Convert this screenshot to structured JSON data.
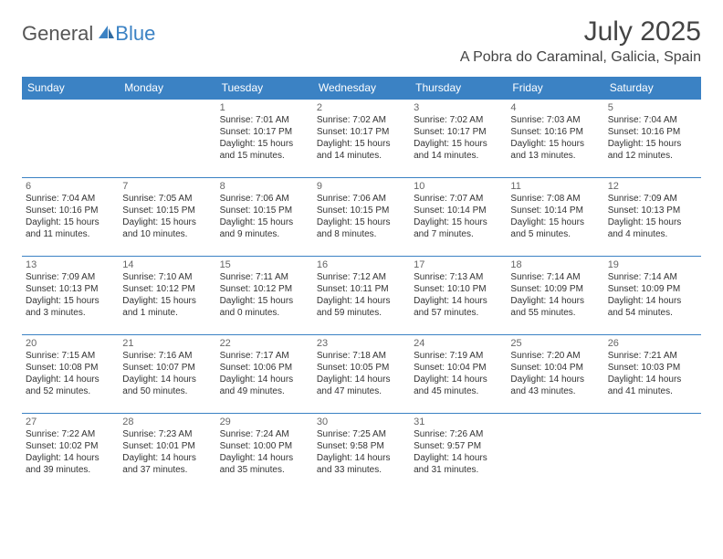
{
  "logo": {
    "text1": "General",
    "text2": "Blue"
  },
  "title": "July 2025",
  "location": "A Pobra do Caraminal, Galicia, Spain",
  "colors": {
    "brand_blue": "#3b82c4",
    "text_gray": "#555555",
    "white": "#ffffff"
  },
  "dayNames": [
    "Sunday",
    "Monday",
    "Tuesday",
    "Wednesday",
    "Thursday",
    "Friday",
    "Saturday"
  ],
  "weeks": [
    [
      null,
      null,
      {
        "n": "1",
        "sr": "7:01 AM",
        "ss": "10:17 PM",
        "dl": "15 hours and 15 minutes."
      },
      {
        "n": "2",
        "sr": "7:02 AM",
        "ss": "10:17 PM",
        "dl": "15 hours and 14 minutes."
      },
      {
        "n": "3",
        "sr": "7:02 AM",
        "ss": "10:17 PM",
        "dl": "15 hours and 14 minutes."
      },
      {
        "n": "4",
        "sr": "7:03 AM",
        "ss": "10:16 PM",
        "dl": "15 hours and 13 minutes."
      },
      {
        "n": "5",
        "sr": "7:04 AM",
        "ss": "10:16 PM",
        "dl": "15 hours and 12 minutes."
      }
    ],
    [
      {
        "n": "6",
        "sr": "7:04 AM",
        "ss": "10:16 PM",
        "dl": "15 hours and 11 minutes."
      },
      {
        "n": "7",
        "sr": "7:05 AM",
        "ss": "10:15 PM",
        "dl": "15 hours and 10 minutes."
      },
      {
        "n": "8",
        "sr": "7:06 AM",
        "ss": "10:15 PM",
        "dl": "15 hours and 9 minutes."
      },
      {
        "n": "9",
        "sr": "7:06 AM",
        "ss": "10:15 PM",
        "dl": "15 hours and 8 minutes."
      },
      {
        "n": "10",
        "sr": "7:07 AM",
        "ss": "10:14 PM",
        "dl": "15 hours and 7 minutes."
      },
      {
        "n": "11",
        "sr": "7:08 AM",
        "ss": "10:14 PM",
        "dl": "15 hours and 5 minutes."
      },
      {
        "n": "12",
        "sr": "7:09 AM",
        "ss": "10:13 PM",
        "dl": "15 hours and 4 minutes."
      }
    ],
    [
      {
        "n": "13",
        "sr": "7:09 AM",
        "ss": "10:13 PM",
        "dl": "15 hours and 3 minutes."
      },
      {
        "n": "14",
        "sr": "7:10 AM",
        "ss": "10:12 PM",
        "dl": "15 hours and 1 minute."
      },
      {
        "n": "15",
        "sr": "7:11 AM",
        "ss": "10:12 PM",
        "dl": "15 hours and 0 minutes."
      },
      {
        "n": "16",
        "sr": "7:12 AM",
        "ss": "10:11 PM",
        "dl": "14 hours and 59 minutes."
      },
      {
        "n": "17",
        "sr": "7:13 AM",
        "ss": "10:10 PM",
        "dl": "14 hours and 57 minutes."
      },
      {
        "n": "18",
        "sr": "7:14 AM",
        "ss": "10:09 PM",
        "dl": "14 hours and 55 minutes."
      },
      {
        "n": "19",
        "sr": "7:14 AM",
        "ss": "10:09 PM",
        "dl": "14 hours and 54 minutes."
      }
    ],
    [
      {
        "n": "20",
        "sr": "7:15 AM",
        "ss": "10:08 PM",
        "dl": "14 hours and 52 minutes."
      },
      {
        "n": "21",
        "sr": "7:16 AM",
        "ss": "10:07 PM",
        "dl": "14 hours and 50 minutes."
      },
      {
        "n": "22",
        "sr": "7:17 AM",
        "ss": "10:06 PM",
        "dl": "14 hours and 49 minutes."
      },
      {
        "n": "23",
        "sr": "7:18 AM",
        "ss": "10:05 PM",
        "dl": "14 hours and 47 minutes."
      },
      {
        "n": "24",
        "sr": "7:19 AM",
        "ss": "10:04 PM",
        "dl": "14 hours and 45 minutes."
      },
      {
        "n": "25",
        "sr": "7:20 AM",
        "ss": "10:04 PM",
        "dl": "14 hours and 43 minutes."
      },
      {
        "n": "26",
        "sr": "7:21 AM",
        "ss": "10:03 PM",
        "dl": "14 hours and 41 minutes."
      }
    ],
    [
      {
        "n": "27",
        "sr": "7:22 AM",
        "ss": "10:02 PM",
        "dl": "14 hours and 39 minutes."
      },
      {
        "n": "28",
        "sr": "7:23 AM",
        "ss": "10:01 PM",
        "dl": "14 hours and 37 minutes."
      },
      {
        "n": "29",
        "sr": "7:24 AM",
        "ss": "10:00 PM",
        "dl": "14 hours and 35 minutes."
      },
      {
        "n": "30",
        "sr": "7:25 AM",
        "ss": "9:58 PM",
        "dl": "14 hours and 33 minutes."
      },
      {
        "n": "31",
        "sr": "7:26 AM",
        "ss": "9:57 PM",
        "dl": "14 hours and 31 minutes."
      },
      null,
      null
    ]
  ],
  "labels": {
    "sunrise": "Sunrise:",
    "sunset": "Sunset:",
    "daylight": "Daylight:"
  }
}
